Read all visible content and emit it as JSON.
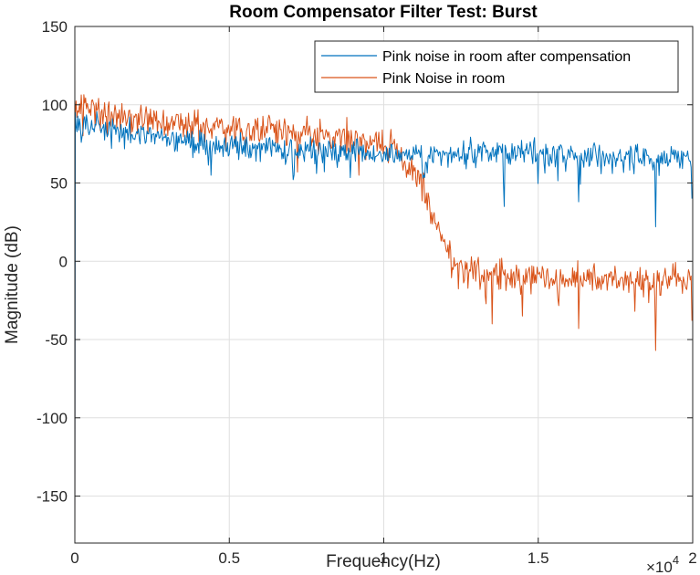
{
  "chart_data": {
    "type": "line",
    "title": "Room Compensator Filter Test: Burst",
    "xlabel": "Frequency(Hz)",
    "ylabel": "Magnitude (dB)",
    "x_exponent_base": "×10",
    "x_exponent_power": "4",
    "xlim": [
      0,
      20000
    ],
    "ylim": [
      -180,
      150
    ],
    "xticks": [
      0,
      5000,
      10000,
      15000,
      20000
    ],
    "xtick_labels": [
      "0",
      "0.5",
      "1",
      "1.5",
      "2"
    ],
    "yticks": [
      -150,
      -100,
      -50,
      0,
      50,
      100,
      150
    ],
    "ytick_labels": [
      "-150",
      "-100",
      "-50",
      "0",
      "50",
      "100",
      "150"
    ],
    "grid": true,
    "legend_position": "top-right",
    "series": [
      {
        "name": "Pink noise in room after compensation",
        "color": "#0072BD",
        "x": [
          0,
          20,
          100,
          300,
          600,
          1000,
          1500,
          2000,
          3000,
          4000,
          5000,
          6000,
          7000,
          8000,
          9000,
          10000,
          11000,
          12000,
          12500,
          13000,
          14000,
          15000,
          16000,
          17000,
          18000,
          18700,
          19000,
          20000
        ],
        "y": [
          -180,
          95,
          90,
          88,
          87,
          85,
          82,
          80,
          78,
          75,
          73,
          72,
          71,
          70,
          69,
          68,
          67,
          68,
          70,
          70,
          70,
          69,
          68,
          67,
          67,
          66,
          66,
          65
        ],
        "noise": 5,
        "dips": [
          [
            13900,
            35
          ],
          [
            16300,
            38
          ],
          [
            18800,
            22
          ],
          [
            7100,
            55
          ],
          [
            4400,
            55
          ],
          [
            11300,
            55
          ],
          [
            20000,
            40
          ]
        ]
      },
      {
        "name": "Pink Noise in room",
        "color": "#D95319",
        "x": [
          0,
          20,
          100,
          300,
          600,
          1000,
          1500,
          2000,
          3000,
          4000,
          5000,
          6000,
          7000,
          8000,
          9000,
          10000,
          10500,
          11000,
          11300,
          11600,
          11900,
          12200,
          12500,
          13000,
          14000,
          15000,
          16000,
          17000,
          18000,
          19000,
          20000
        ],
        "y": [
          -180,
          95,
          97,
          98,
          98,
          96,
          93,
          91,
          89,
          87,
          86,
          85,
          83,
          81,
          79,
          76,
          70,
          58,
          45,
          30,
          15,
          0,
          -5,
          -7,
          -10,
          -10,
          -11,
          -11,
          -12,
          -12,
          -13
        ],
        "noise": 6,
        "dips": [
          [
            13500,
            -40
          ],
          [
            16300,
            -43
          ],
          [
            18800,
            -57
          ],
          [
            20000,
            -38
          ],
          [
            7200,
            57
          ],
          [
            9200,
            55
          ],
          [
            14500,
            -35
          ]
        ]
      }
    ]
  }
}
